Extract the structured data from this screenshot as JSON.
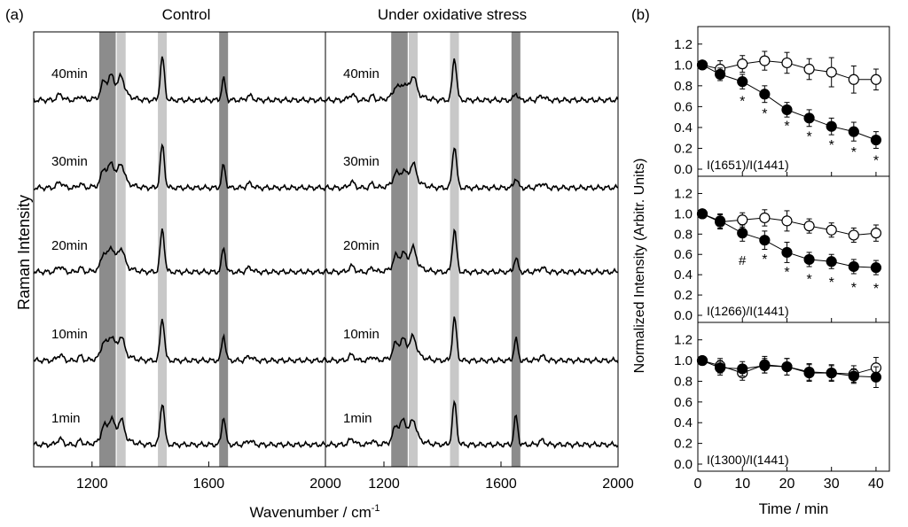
{
  "figure": {
    "panel_a_label": "(a)",
    "panel_b_label": "(b)"
  },
  "chart_data": [
    {
      "type": "line",
      "panel": "(a)",
      "title": "Control",
      "xlabel": "Wavenumber / cm-1",
      "xlabel_main": "Wavenumber / cm",
      "xlabel_sup": "-1",
      "ylabel": "Raman Intensity",
      "xlim": [
        1000,
        2000
      ],
      "xticks": [
        1200,
        1600,
        2000
      ],
      "xtick_labels": [
        "1200",
        "1600",
        "2000"
      ],
      "highlight_bands": [
        {
          "center": 1240,
          "shade": "#8c8c8c"
        },
        {
          "center": 1266,
          "shade": "#8c8c8c"
        },
        {
          "center": 1300,
          "shade": "#c8c8c8"
        },
        {
          "center": 1441,
          "shade": "#c8c8c8"
        },
        {
          "center": 1651,
          "shade": "#8c8c8c"
        }
      ],
      "traces": [
        {
          "label": "40min",
          "peak_scale": [
            1.0,
            1.0,
            0.85,
            1.0,
            0.75
          ]
        },
        {
          "label": "30min",
          "peak_scale": [
            1.0,
            1.0,
            0.85,
            1.0,
            0.8
          ]
        },
        {
          "label": "20min",
          "peak_scale": [
            1.0,
            1.0,
            0.85,
            1.0,
            0.85
          ]
        },
        {
          "label": "10min",
          "peak_scale": [
            1.0,
            1.0,
            0.85,
            1.0,
            0.9
          ]
        },
        {
          "label": "1min",
          "peak_scale": [
            1.0,
            1.1,
            0.9,
            1.0,
            1.0
          ]
        }
      ]
    },
    {
      "type": "line",
      "panel": "(a)",
      "title": "Under oxidative stress",
      "xlim": [
        1000,
        2000
      ],
      "xticks": [
        1200,
        1600,
        2000
      ],
      "xtick_labels": [
        "1200",
        "1600",
        "2000"
      ],
      "highlight_bands": [
        {
          "center": 1240,
          "shade": "#8c8c8c"
        },
        {
          "center": 1266,
          "shade": "#8c8c8c"
        },
        {
          "center": 1300,
          "shade": "#c8c8c8"
        },
        {
          "center": 1441,
          "shade": "#c8c8c8"
        },
        {
          "center": 1651,
          "shade": "#8c8c8c"
        }
      ],
      "traces": [
        {
          "label": "40min",
          "peak_scale": [
            0.6,
            0.5,
            0.85,
            1.0,
            0.25
          ]
        },
        {
          "label": "30min",
          "peak_scale": [
            0.7,
            0.55,
            0.85,
            1.0,
            0.35
          ]
        },
        {
          "label": "20min",
          "peak_scale": [
            0.8,
            0.65,
            0.85,
            1.0,
            0.5
          ]
        },
        {
          "label": "10min",
          "peak_scale": [
            0.9,
            0.8,
            0.85,
            1.0,
            0.75
          ]
        },
        {
          "label": "1min",
          "peak_scale": [
            1.0,
            1.0,
            0.9,
            1.0,
            1.0
          ]
        }
      ]
    },
    {
      "type": "scatter",
      "panel": "(b)",
      "annotation": "I(1651)/I(1441)",
      "ylim": [
        0.0,
        1.3
      ],
      "yticks": [
        "0.0",
        "0.2",
        "0.4",
        "0.6",
        "0.8",
        "1.0",
        "1.2"
      ],
      "x": [
        1,
        5,
        10,
        15,
        20,
        25,
        30,
        35,
        40
      ],
      "series": [
        {
          "marker": "open",
          "values": [
            1.0,
            0.96,
            1.01,
            1.04,
            1.02,
            0.96,
            0.93,
            0.86,
            0.86
          ],
          "errors": [
            0.03,
            0.08,
            0.08,
            0.09,
            0.1,
            0.1,
            0.14,
            0.13,
            0.1
          ]
        },
        {
          "marker": "filled",
          "values": [
            1.0,
            0.91,
            0.84,
            0.72,
            0.57,
            0.49,
            0.41,
            0.36,
            0.28
          ],
          "errors": [
            0.03,
            0.06,
            0.07,
            0.08,
            0.07,
            0.08,
            0.08,
            0.09,
            0.08
          ]
        }
      ],
      "markers": [
        {
          "x": 10,
          "y": 0.66,
          "text": "*"
        },
        {
          "x": 15,
          "y": 0.54,
          "text": "*"
        },
        {
          "x": 20,
          "y": 0.42,
          "text": "*"
        },
        {
          "x": 25,
          "y": 0.32,
          "text": "*"
        },
        {
          "x": 30,
          "y": 0.24,
          "text": "*"
        },
        {
          "x": 35,
          "y": 0.17,
          "text": "*"
        },
        {
          "x": 40,
          "y": 0.09,
          "text": "*"
        }
      ]
    },
    {
      "type": "scatter",
      "panel": "(b)",
      "annotation": "I(1266)/I(1441)",
      "ylabel": "Normalized Intensity (Arbitr. Units)",
      "ylim": [
        0.0,
        1.3
      ],
      "yticks": [
        "0.0",
        "0.2",
        "0.4",
        "0.6",
        "0.8",
        "1.0",
        "1.2"
      ],
      "x": [
        1,
        5,
        10,
        15,
        20,
        25,
        30,
        35,
        40
      ],
      "series": [
        {
          "marker": "open",
          "values": [
            1.0,
            0.92,
            0.94,
            0.96,
            0.93,
            0.88,
            0.84,
            0.79,
            0.81
          ],
          "errors": [
            0.03,
            0.07,
            0.07,
            0.08,
            0.1,
            0.07,
            0.07,
            0.07,
            0.08
          ]
        },
        {
          "marker": "filled",
          "values": [
            1.0,
            0.93,
            0.81,
            0.74,
            0.62,
            0.55,
            0.53,
            0.48,
            0.47
          ],
          "errors": [
            0.03,
            0.07,
            0.08,
            0.09,
            0.1,
            0.07,
            0.07,
            0.07,
            0.07
          ]
        }
      ],
      "markers": [
        {
          "x": 10,
          "y": 0.55,
          "text": "#"
        },
        {
          "x": 15,
          "y": 0.56,
          "text": "*"
        },
        {
          "x": 20,
          "y": 0.43,
          "text": "*"
        },
        {
          "x": 25,
          "y": 0.36,
          "text": "*"
        },
        {
          "x": 30,
          "y": 0.33,
          "text": "*"
        },
        {
          "x": 35,
          "y": 0.28,
          "text": "*"
        },
        {
          "x": 40,
          "y": 0.27,
          "text": "*"
        }
      ]
    },
    {
      "type": "scatter",
      "panel": "(b)",
      "annotation": "I(1300)/I(1441)",
      "xlabel": "Time / min",
      "ylim": [
        0.0,
        1.3
      ],
      "yticks": [
        "0.0",
        "0.2",
        "0.4",
        "0.6",
        "0.8",
        "1.0",
        "1.2"
      ],
      "xlim": [
        0,
        43
      ],
      "xticks": [
        "0",
        "10",
        "20",
        "30",
        "40"
      ],
      "x": [
        1,
        5,
        10,
        15,
        20,
        25,
        30,
        35,
        40
      ],
      "series": [
        {
          "marker": "open",
          "values": [
            1.0,
            0.95,
            0.88,
            0.96,
            0.94,
            0.89,
            0.88,
            0.87,
            0.93
          ],
          "errors": [
            0.03,
            0.07,
            0.07,
            0.08,
            0.08,
            0.08,
            0.08,
            0.08,
            0.1
          ]
        },
        {
          "marker": "filled",
          "values": [
            1.0,
            0.93,
            0.92,
            0.95,
            0.94,
            0.88,
            0.88,
            0.85,
            0.84
          ],
          "errors": [
            0.03,
            0.07,
            0.07,
            0.07,
            0.08,
            0.08,
            0.07,
            0.07,
            0.1
          ]
        }
      ],
      "markers": []
    }
  ]
}
